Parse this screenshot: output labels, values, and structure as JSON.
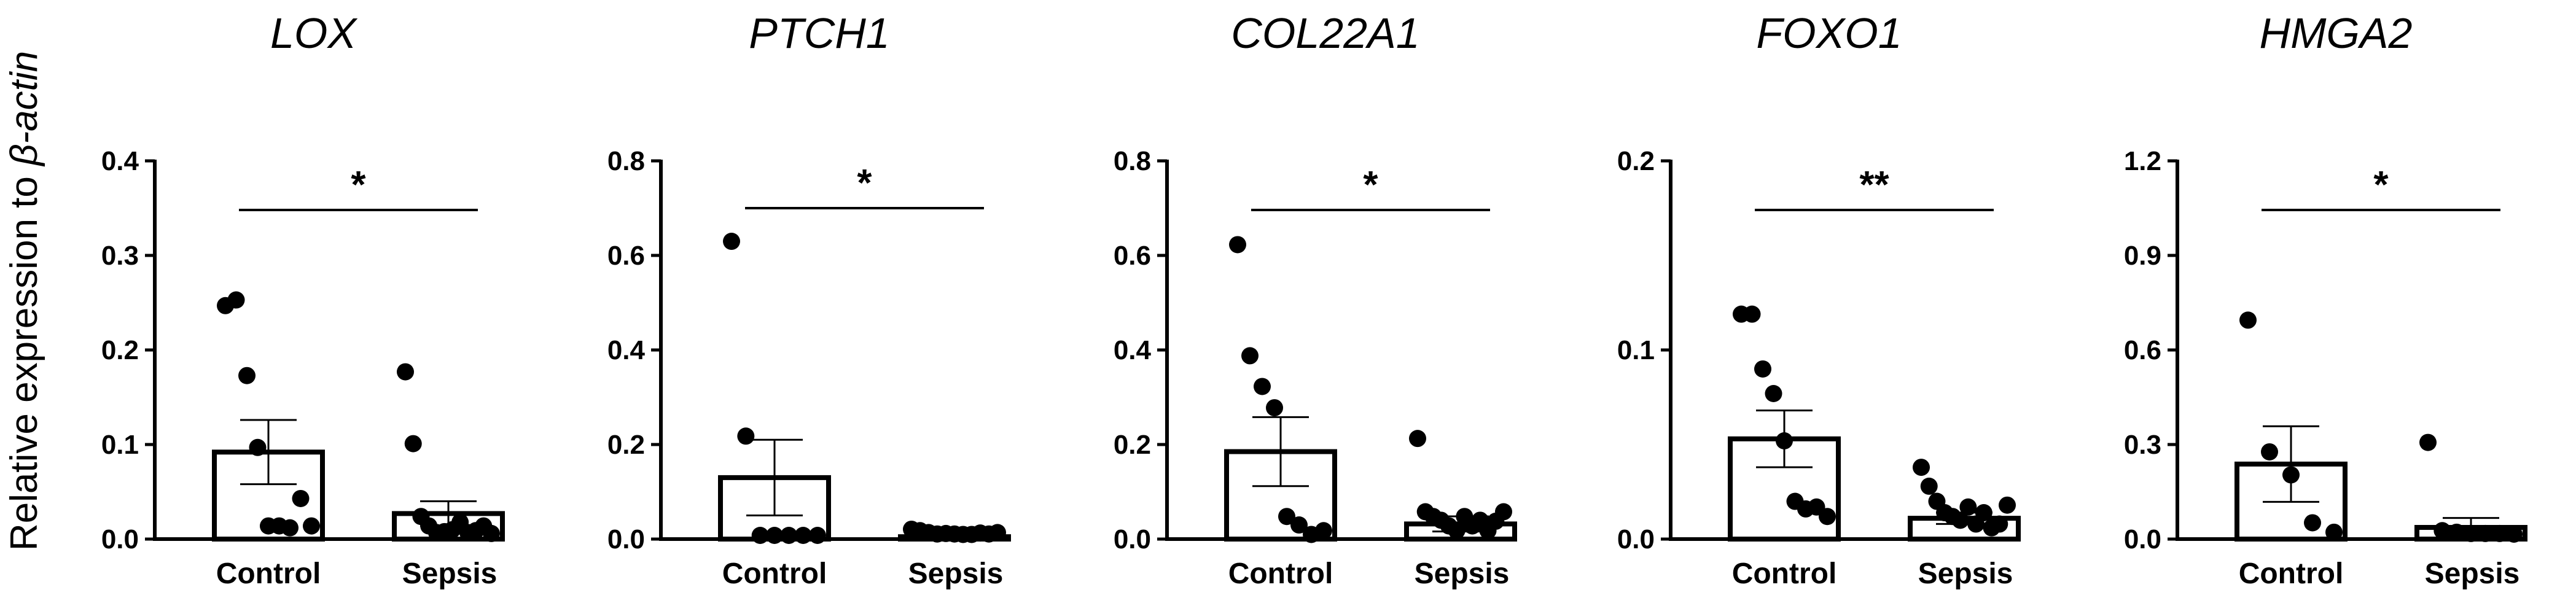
{
  "ylabel": {
    "text_plain": "Relative expression to ",
    "text_italic": "β-actin"
  },
  "categories": [
    "Control",
    "Sepsis"
  ],
  "chart_data": [
    {
      "type": "bar",
      "title": "LOX",
      "categories": [
        "Control",
        "Sepsis"
      ],
      "ylim": [
        0,
        0.4
      ],
      "yticks": [
        0.0,
        0.1,
        0.2,
        0.3,
        0.4
      ],
      "tick_labels": [
        "0.0",
        "0.1",
        "0.2",
        "0.3",
        "0.4"
      ],
      "means": [
        0.092,
        0.027
      ],
      "sem": [
        0.034,
        0.013
      ],
      "points": [
        [
          0.243,
          0.249,
          0.169,
          0.093,
          0.01,
          0.01,
          0.008,
          0.039,
          0.01
        ],
        [
          0.173,
          0.097,
          0.02,
          0.01,
          0.003,
          0.004,
          0.006,
          0.014,
          0.003,
          0.005,
          0.01,
          0.002
        ]
      ],
      "significance": "*"
    },
    {
      "type": "bar",
      "title": "PTCH1",
      "categories": [
        "Control",
        "Sepsis"
      ],
      "ylim": [
        0,
        0.8
      ],
      "yticks": [
        0.0,
        0.2,
        0.4,
        0.6,
        0.8
      ],
      "tick_labels": [
        "0.0",
        "0.2",
        "0.4",
        "0.6",
        "0.8"
      ],
      "means": [
        0.13,
        0.005
      ],
      "sem": [
        0.08,
        0.003
      ],
      "points": [
        [
          0.622,
          0.21,
          0.0,
          0.0,
          0.0,
          0.0,
          0.0
        ],
        [
          0.013,
          0.01,
          0.006,
          0.003,
          0.004,
          0.003,
          0.002,
          0.002,
          0.005,
          0.003,
          0.006
        ]
      ],
      "significance": "*"
    },
    {
      "type": "bar",
      "title": "COL22A1",
      "categories": [
        "Control",
        "Sepsis"
      ],
      "ylim": [
        0,
        0.8
      ],
      "yticks": [
        0.0,
        0.2,
        0.4,
        0.6,
        0.8
      ],
      "tick_labels": [
        "0.0",
        "0.2",
        "0.4",
        "0.6",
        "0.8"
      ],
      "means": [
        0.185,
        0.032
      ],
      "sem": [
        0.073,
        0.016
      ],
      "points": [
        [
          0.615,
          0.38,
          0.315,
          0.27,
          0.04,
          0.022,
          0.002,
          0.01
        ],
        [
          0.205,
          0.05,
          0.04,
          0.032,
          0.02,
          0.01,
          0.04,
          0.02,
          0.032,
          0.01,
          0.03,
          0.05
        ]
      ],
      "significance": "*"
    },
    {
      "type": "bar",
      "title": "FOXO1",
      "categories": [
        "Control",
        "Sepsis"
      ],
      "ylim": [
        0,
        0.2
      ],
      "yticks": [
        0.0,
        0.1,
        0.2
      ],
      "tick_labels": [
        "0.0",
        "0.1",
        "0.2"
      ],
      "means": [
        0.053,
        0.011
      ],
      "sem": [
        0.015,
        0.003
      ],
      "points": [
        [
          0.117,
          0.117,
          0.088,
          0.075,
          0.05,
          0.018,
          0.014,
          0.015,
          0.01
        ],
        [
          0.036,
          0.026,
          0.018,
          0.012,
          0.01,
          0.008,
          0.015,
          0.006,
          0.012,
          0.004,
          0.006,
          0.016
        ]
      ],
      "significance": "**"
    },
    {
      "type": "bar",
      "title": "HMGA2",
      "categories": [
        "Control",
        "Sepsis"
      ],
      "ylim": [
        0,
        1.2
      ],
      "yticks": [
        0.0,
        0.3,
        0.6,
        0.9,
        1.2
      ],
      "tick_labels": [
        "0.0",
        "0.3",
        "0.6",
        "0.9",
        "1.2"
      ],
      "means": [
        0.238,
        0.037
      ],
      "sem": [
        0.12,
        0.03
      ],
      "points": [
        [
          0.683,
          0.265,
          0.192,
          0.04,
          0.01
        ],
        [
          0.295,
          0.015,
          0.01,
          0.006,
          0.006,
          0.006,
          0.004
        ]
      ],
      "significance": "*"
    }
  ]
}
